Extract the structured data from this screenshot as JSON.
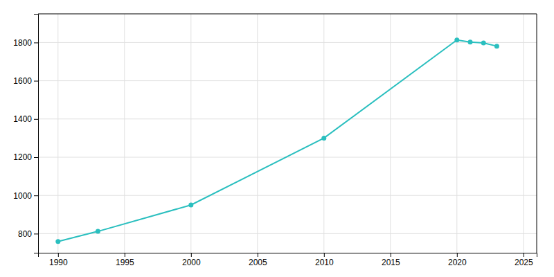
{
  "chart_data": {
    "type": "line",
    "x": [
      1990,
      1993,
      2000,
      2010,
      2020,
      2021,
      2022,
      2023
    ],
    "values": [
      759,
      812,
      950,
      1300,
      1813,
      1802,
      1798,
      1781
    ],
    "color": "#2abfbf",
    "marker": "circle",
    "xlim": [
      1988.5,
      2026
    ],
    "ylim": [
      700,
      1950
    ],
    "xticks": [
      1990,
      1995,
      2000,
      2005,
      2010,
      2015,
      2020,
      2025
    ],
    "yticks": [
      800,
      1000,
      1200,
      1400,
      1600,
      1800
    ],
    "grid": true
  }
}
